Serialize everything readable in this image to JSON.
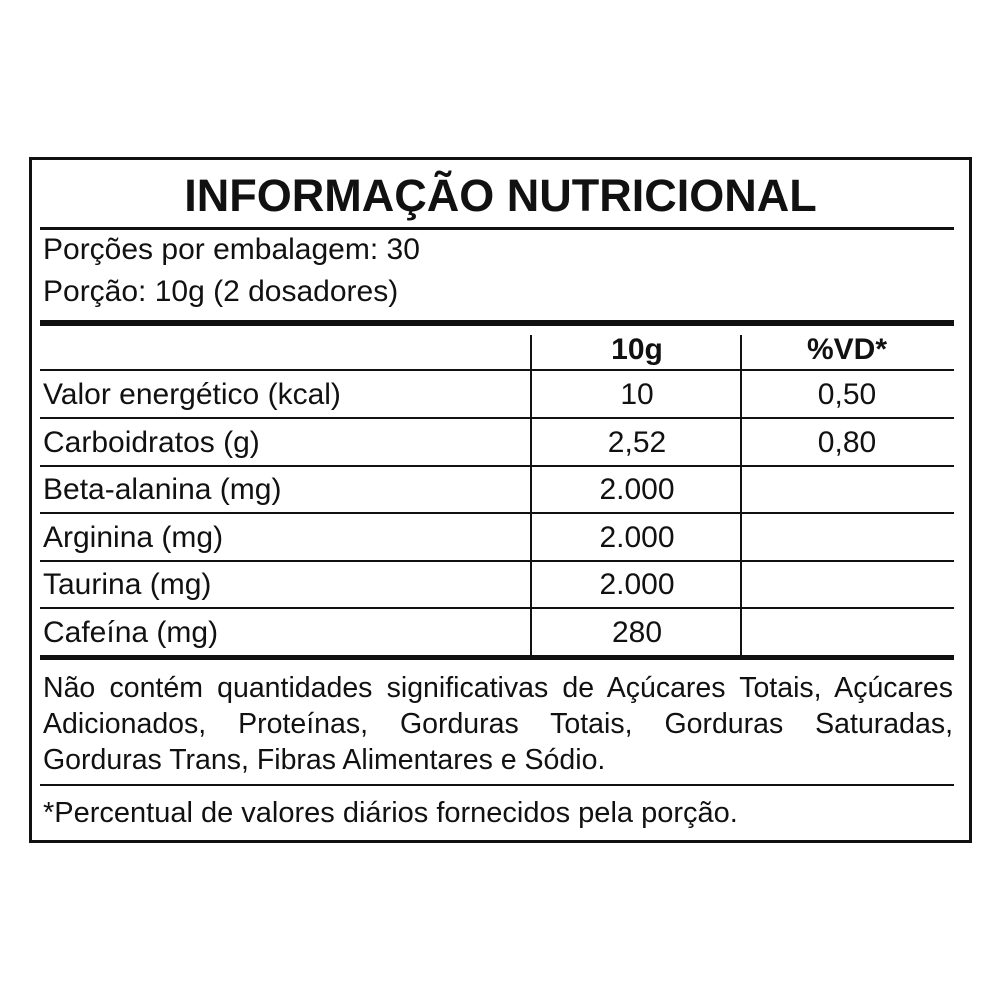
{
  "title": "INFORMAÇÃO NUTRICIONAL",
  "servings_per_package": "Porções por embalagem: 30",
  "serving_size": "Porção: 10g (2 dosadores)",
  "columns": [
    "",
    "10g",
    "%VD*"
  ],
  "rows": [
    {
      "nutrient": "Valor energético (kcal)",
      "amount": "10",
      "dv": "0,50"
    },
    {
      "nutrient": "Carboidratos (g)",
      "amount": "2,52",
      "dv": "0,80"
    },
    {
      "nutrient": "Beta-alanina (mg)",
      "amount": "2.000",
      "dv": ""
    },
    {
      "nutrient": "Arginina (mg)",
      "amount": "2.000",
      "dv": ""
    },
    {
      "nutrient": "Taurina (mg)",
      "amount": "2.000",
      "dv": ""
    },
    {
      "nutrient": "Cafeína (mg)",
      "amount": "280",
      "dv": ""
    }
  ],
  "note": "Não contém quantidades significativas de Açúcares Totais, Açúcares Adicionados, Proteínas, Gorduras Totais, Gorduras Saturadas, Gorduras Trans, Fibras Alimentares e Sódio.",
  "footnote": "*Percentual de valores diários fornecidos pela porção."
}
